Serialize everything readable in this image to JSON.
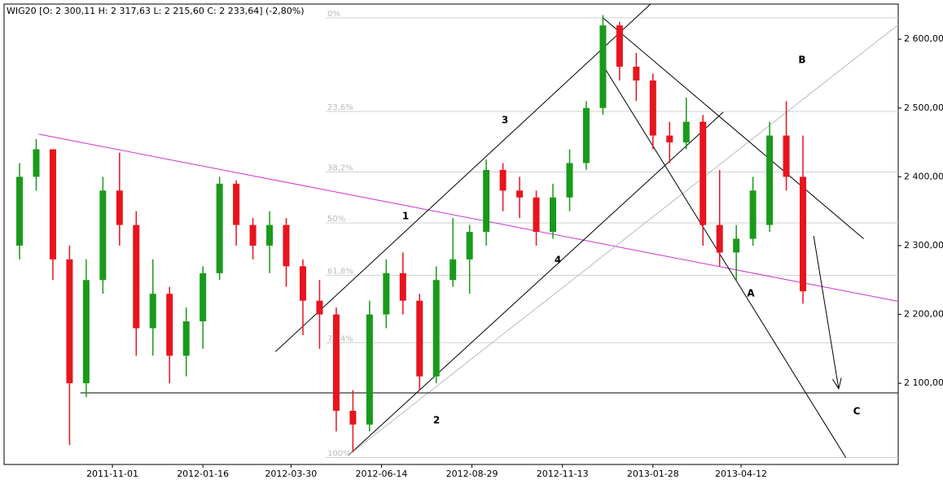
{
  "chart_data": {
    "type": "candlestick",
    "title": "WIG20 [O: 2 300,11  H: 2 317,63  L: 2 215,60  C: 2 233,64] (-2,80%)",
    "x": [
      "2011-08-15",
      "2011-08-29",
      "2011-09-12",
      "2011-09-26",
      "2011-10-10",
      "2011-10-24",
      "2011-11-07",
      "2011-11-21",
      "2011-12-05",
      "2011-12-19",
      "2012-01-02",
      "2012-01-16",
      "2012-01-30",
      "2012-02-13",
      "2012-02-27",
      "2012-03-12",
      "2012-03-26",
      "2012-04-09",
      "2012-04-23",
      "2012-05-07",
      "2012-05-21",
      "2012-06-04",
      "2012-06-18",
      "2012-07-02",
      "2012-07-16",
      "2012-07-30",
      "2012-08-13",
      "2012-08-27",
      "2012-09-10",
      "2012-09-24",
      "2012-10-08",
      "2012-10-22",
      "2012-11-05",
      "2012-11-19",
      "2012-12-03",
      "2012-12-17",
      "2012-12-31",
      "2013-01-14",
      "2013-01-28",
      "2013-02-11",
      "2013-02-25",
      "2013-03-11",
      "2013-03-25",
      "2013-04-08",
      "2013-04-22",
      "2013-05-06",
      "2013-05-20",
      "2013-06-03"
    ],
    "open": [
      2300,
      2400,
      2440,
      2280,
      2100,
      2250,
      2380,
      2330,
      2180,
      2230,
      2140,
      2190,
      2260,
      2390,
      2330,
      2300,
      2330,
      2270,
      2220,
      2200,
      2060,
      2040,
      2200,
      2260,
      2220,
      2110,
      2250,
      2280,
      2320,
      2410,
      2380,
      2370,
      2320,
      2370,
      2420,
      2500,
      2620,
      2560,
      2540,
      2460,
      2450,
      2480,
      2330,
      2290,
      2310,
      2330,
      2460,
      2400
    ],
    "high": [
      2420,
      2455,
      2440,
      2300,
      2280,
      2400,
      2435,
      2350,
      2280,
      2240,
      2210,
      2270,
      2400,
      2395,
      2340,
      2350,
      2340,
      2280,
      2250,
      2210,
      2090,
      2220,
      2280,
      2290,
      2230,
      2270,
      2340,
      2330,
      2425,
      2420,
      2400,
      2380,
      2390,
      2440,
      2510,
      2635,
      2625,
      2580,
      2550,
      2480,
      2515,
      2490,
      2410,
      2330,
      2400,
      2480,
      2510,
      2460
    ],
    "low": [
      2280,
      2380,
      2250,
      2010,
      2080,
      2230,
      2300,
      2140,
      2140,
      2100,
      2110,
      2150,
      2250,
      2300,
      2280,
      2260,
      2240,
      2170,
      2150,
      2030,
      2000,
      2030,
      2180,
      2200,
      2090,
      2100,
      2240,
      2230,
      2300,
      2350,
      2340,
      2300,
      2310,
      2350,
      2410,
      2490,
      2540,
      2510,
      2440,
      2420,
      2440,
      2300,
      2270,
      2250,
      2300,
      2320,
      2380,
      2215.6
    ],
    "close": [
      2400,
      2440,
      2280,
      2100,
      2250,
      2380,
      2330,
      2180,
      2230,
      2140,
      2190,
      2260,
      2390,
      2330,
      2300,
      2330,
      2270,
      2220,
      2200,
      2060,
      2040,
      2200,
      2260,
      2220,
      2110,
      2250,
      2280,
      2320,
      2410,
      2380,
      2370,
      2320,
      2370,
      2420,
      2500,
      2620,
      2560,
      2540,
      2460,
      2450,
      2480,
      2330,
      2290,
      2310,
      2380,
      2460,
      2400,
      2233.64
    ],
    "up_color": "#1a9a1a",
    "down_color": "#e8141e",
    "xlim": [
      "2011-08-02",
      "2013-08-22"
    ],
    "xticks": [
      "2011-11-01",
      "2012-01-16",
      "2012-03-30",
      "2012-06-14",
      "2012-08-29",
      "2012-11-13",
      "2013-01-28",
      "2013-04-12"
    ],
    "ylim": [
      1982,
      2651
    ],
    "yticks": [
      {
        "value": 2100,
        "label": "2 100,00"
      },
      {
        "value": 2200,
        "label": "2 200,00"
      },
      {
        "value": 2300,
        "label": "2 300,00"
      },
      {
        "value": 2400,
        "label": "2 400,00"
      },
      {
        "value": 2500,
        "label": "2 500,00"
      },
      {
        "value": 2600,
        "label": "2 600,00"
      }
    ],
    "fib_levels": [
      {
        "label": "0%",
        "value": 2631
      },
      {
        "label": "23,6%",
        "value": 2495
      },
      {
        "label": "38,2%",
        "value": 2407
      },
      {
        "label": "50%",
        "value": 2333
      },
      {
        "label": "61,8%",
        "value": 2257
      },
      {
        "label": "76,4%",
        "value": 2159
      },
      {
        "label": "100%",
        "value": 1992
      }
    ],
    "lines": [
      {
        "color": "#cc33cc",
        "x": [
          "2011-08-31",
          "2013-08-22"
        ],
        "y": [
          2462,
          2219
        ]
      },
      {
        "color": "#000000",
        "x": [
          "2012-03-17",
          "2013-01-26"
        ],
        "y": [
          2146,
          2651
        ]
      },
      {
        "color": "#000000",
        "x": [
          "2012-05-17",
          "2013-03-28"
        ],
        "y": [
          1995,
          2494
        ]
      },
      {
        "color": "#bbbbbb",
        "x": [
          "2012-05-17",
          "2013-08-22"
        ],
        "y": [
          1995,
          2621
        ]
      },
      {
        "color": "#000000",
        "x": [
          "2012-12-17",
          "2013-07-24"
        ],
        "y": [
          2631,
          2310
        ]
      },
      {
        "color": "#000000",
        "x": [
          "2012-12-17",
          "2013-07-09"
        ],
        "y": [
          2562,
          1992
        ]
      },
      {
        "color": "#000000",
        "x": [
          "2011-10-05",
          "2013-08-22"
        ],
        "y": [
          2086,
          2086
        ]
      }
    ],
    "arrow": {
      "x": [
        "2013-06-12",
        "2013-07-03"
      ],
      "y": [
        2314,
        2092
      ]
    },
    "wave_labels": [
      "1",
      "2",
      "3",
      "4",
      "A",
      "B",
      "C"
    ]
  }
}
